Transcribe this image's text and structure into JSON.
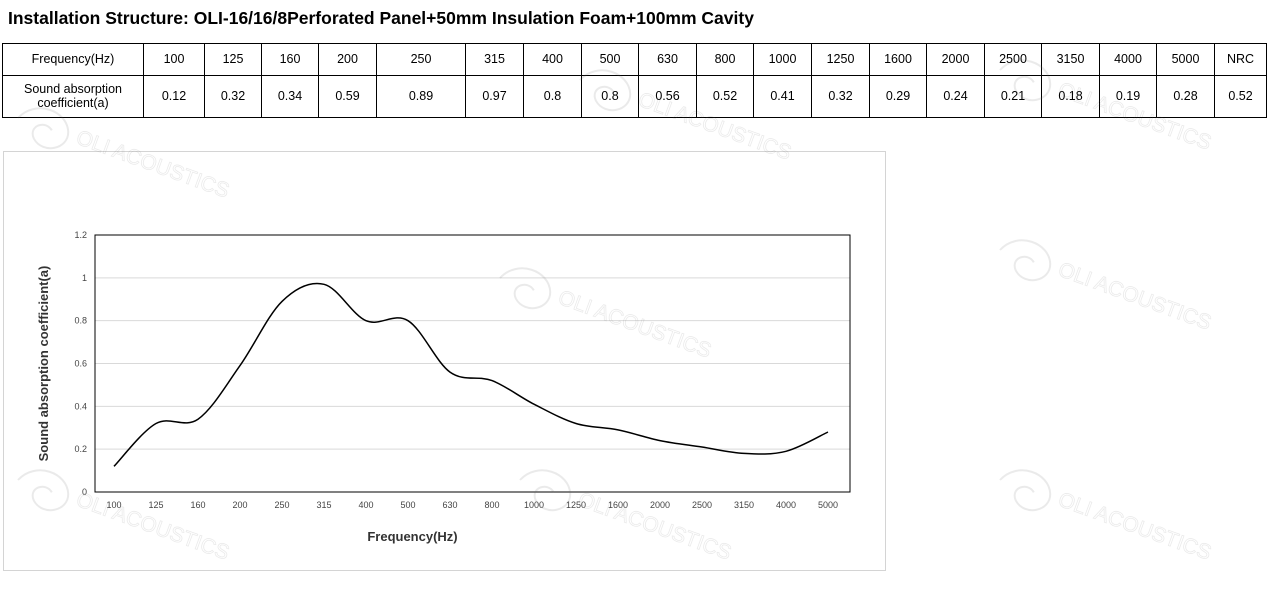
{
  "title": "Installation Structure: OLI-16/16/8Perforated Panel+50mm Insulation Foam+100mm Cavity",
  "table": {
    "row1_label": "Frequency(Hz)",
    "row2_label": "Sound absorption coefficient(a)",
    "frequencies": [
      "100",
      "125",
      "160",
      "200",
      "250",
      "315",
      "400",
      "500",
      "630",
      "800",
      "1000",
      "1250",
      "1600",
      "2000",
      "2500",
      "3150",
      "4000",
      "5000",
      "NRC"
    ],
    "coefficients": [
      "0.12",
      "0.32",
      "0.34",
      "0.59",
      "0.89",
      "0.97",
      "0.8",
      "0.8",
      "0.56",
      "0.52",
      "0.41",
      "0.32",
      "0.29",
      "0.24",
      "0.21",
      "0.18",
      "0.19",
      "0.28",
      "0.52"
    ]
  },
  "watermark": "OLI ACOUSTICS",
  "chart_data": {
    "type": "line",
    "x": [
      "100",
      "125",
      "160",
      "200",
      "250",
      "315",
      "400",
      "500",
      "630",
      "800",
      "1000",
      "1250",
      "1600",
      "2000",
      "2500",
      "3150",
      "4000",
      "5000"
    ],
    "series": [
      {
        "values": [
          0.12,
          0.32,
          0.34,
          0.59,
          0.89,
          0.97,
          0.8,
          0.8,
          0.56,
          0.52,
          0.41,
          0.32,
          0.29,
          0.24,
          0.21,
          0.18,
          0.19,
          0.28
        ]
      }
    ],
    "title": "",
    "xlabel": "Frequency(Hz)",
    "ylabel": "Sound absorption coefficient(a)",
    "ylim": [
      0,
      1.2
    ],
    "yticks": [
      "0",
      "0.2",
      "0.4",
      "0.6",
      "0.8",
      "1",
      "1.2"
    ],
    "grid": true,
    "legend": "none",
    "line_color": "#000000"
  }
}
